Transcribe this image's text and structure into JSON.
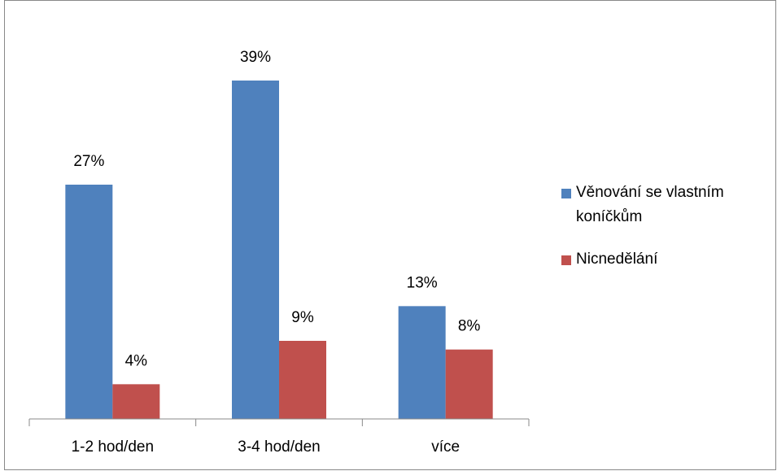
{
  "chart_data": {
    "type": "bar",
    "categories": [
      "1-2 hod/den",
      "3-4 hod/den",
      "více"
    ],
    "series": [
      {
        "name": "Věnování se vlastním koníčkům",
        "color": "#4f81bd",
        "values": [
          27,
          39,
          13
        ],
        "value_labels": [
          "27%",
          "39%",
          "13%"
        ]
      },
      {
        "name": "Nicnedělání",
        "color": "#c0504d",
        "values": [
          4,
          9,
          8
        ],
        "value_labels": [
          "4%",
          "9%",
          "8%"
        ]
      }
    ],
    "legend": "right"
  }
}
